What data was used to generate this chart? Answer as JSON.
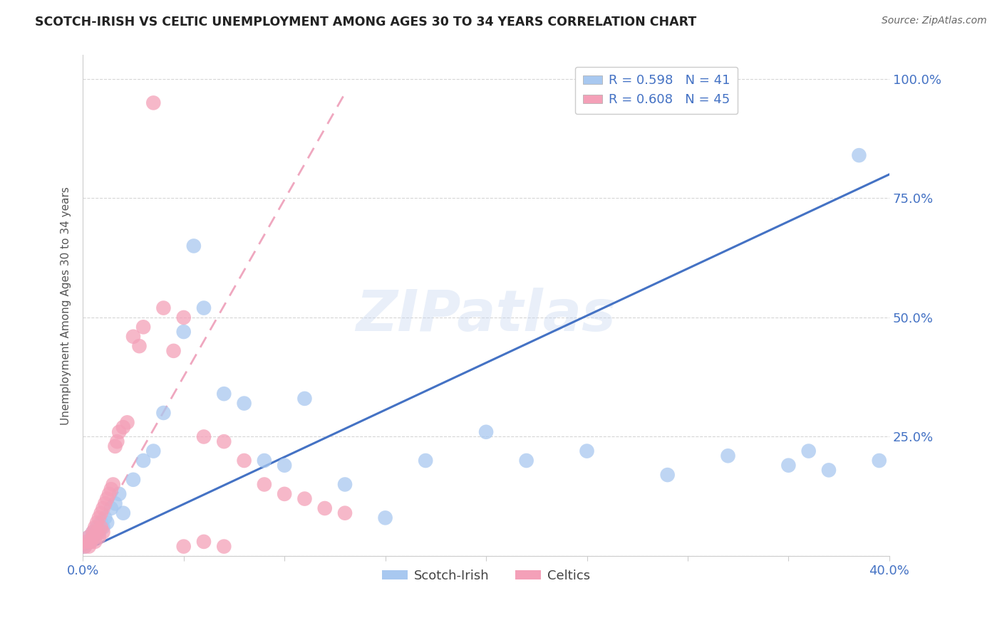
{
  "title": "SCOTCH-IRISH VS CELTIC UNEMPLOYMENT AMONG AGES 30 TO 34 YEARS CORRELATION CHART",
  "source": "Source: ZipAtlas.com",
  "ylabel": "Unemployment Among Ages 30 to 34 years",
  "x_ticks": [
    0.0,
    0.05,
    0.1,
    0.15,
    0.2,
    0.25,
    0.3,
    0.35,
    0.4
  ],
  "y_ticks": [
    0.0,
    0.25,
    0.5,
    0.75,
    1.0
  ],
  "y_tick_labels": [
    "",
    "25.0%",
    "50.0%",
    "75.0%",
    "100.0%"
  ],
  "xlim": [
    0.0,
    0.4
  ],
  "ylim": [
    0.0,
    1.05
  ],
  "legend_entry1": "R = 0.598   N = 41",
  "legend_entry2": "R = 0.608   N = 45",
  "watermark": "ZIPatlas",
  "scotch_irish_color": "#A8C8F0",
  "celtics_color": "#F4A0B8",
  "trend_scotch_color": "#4472C4",
  "trend_celtics_color": "#E05080",
  "scotch_irish_x": [
    0.001,
    0.002,
    0.003,
    0.004,
    0.005,
    0.006,
    0.007,
    0.008,
    0.009,
    0.01,
    0.011,
    0.012,
    0.014,
    0.016,
    0.018,
    0.02,
    0.025,
    0.03,
    0.035,
    0.04,
    0.05,
    0.055,
    0.06,
    0.07,
    0.08,
    0.09,
    0.1,
    0.11,
    0.13,
    0.15,
    0.17,
    0.2,
    0.22,
    0.25,
    0.29,
    0.32,
    0.35,
    0.37,
    0.385,
    0.395,
    0.36
  ],
  "scotch_irish_y": [
    0.02,
    0.03,
    0.04,
    0.03,
    0.05,
    0.04,
    0.06,
    0.05,
    0.07,
    0.06,
    0.08,
    0.07,
    0.1,
    0.11,
    0.13,
    0.09,
    0.16,
    0.2,
    0.22,
    0.3,
    0.47,
    0.65,
    0.52,
    0.34,
    0.32,
    0.2,
    0.19,
    0.33,
    0.15,
    0.08,
    0.2,
    0.26,
    0.2,
    0.22,
    0.17,
    0.21,
    0.19,
    0.18,
    0.84,
    0.2,
    0.22
  ],
  "celtics_x": [
    0.001,
    0.002,
    0.003,
    0.003,
    0.004,
    0.005,
    0.005,
    0.006,
    0.006,
    0.007,
    0.007,
    0.008,
    0.008,
    0.009,
    0.009,
    0.01,
    0.01,
    0.011,
    0.012,
    0.013,
    0.014,
    0.015,
    0.016,
    0.017,
    0.018,
    0.02,
    0.022,
    0.025,
    0.028,
    0.03,
    0.035,
    0.04,
    0.045,
    0.05,
    0.06,
    0.07,
    0.08,
    0.09,
    0.1,
    0.11,
    0.12,
    0.13,
    0.05,
    0.06,
    0.07
  ],
  "celtics_y": [
    0.02,
    0.03,
    0.02,
    0.04,
    0.03,
    0.05,
    0.04,
    0.06,
    0.03,
    0.07,
    0.05,
    0.08,
    0.04,
    0.09,
    0.06,
    0.1,
    0.05,
    0.11,
    0.12,
    0.13,
    0.14,
    0.15,
    0.23,
    0.24,
    0.26,
    0.27,
    0.28,
    0.46,
    0.44,
    0.48,
    0.95,
    0.52,
    0.43,
    0.5,
    0.25,
    0.24,
    0.2,
    0.15,
    0.13,
    0.12,
    0.1,
    0.09,
    0.02,
    0.03,
    0.02
  ],
  "blue_trend_x": [
    0.0,
    0.4
  ],
  "blue_trend_y": [
    0.01,
    0.8
  ],
  "pink_trend_x": [
    0.0,
    0.13
  ],
  "pink_trend_y": [
    0.005,
    0.97
  ]
}
